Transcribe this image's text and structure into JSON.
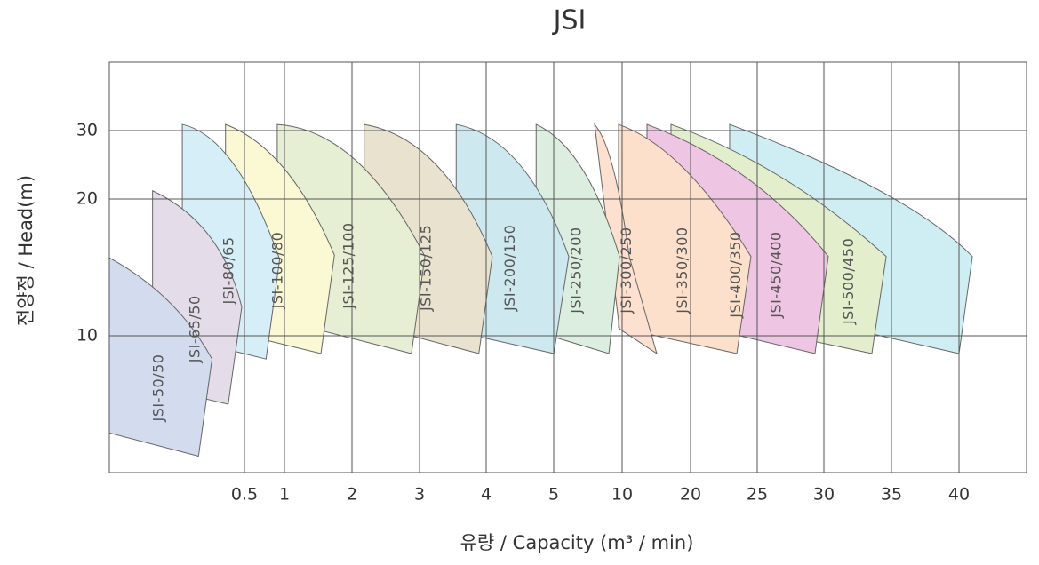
{
  "chart_data": {
    "type": "region",
    "title": "JSI",
    "xlabel": "유량 / Capacity (m³ / min)",
    "ylabel": "전양정 / Head(m)",
    "xlim": [
      0,
      45
    ],
    "xticks": [
      0.5,
      1,
      2,
      3,
      4,
      5,
      10,
      20,
      25,
      30,
      35,
      40
    ],
    "ylim": [
      0,
      40
    ],
    "yticks": [
      10,
      20,
      30
    ],
    "grid": true,
    "series": [
      {
        "name": "JSI-50/50",
        "color": "#d3dcef",
        "x": [
          0,
          0.22,
          0.38,
          0.33,
          0
        ],
        "y": [
          15.7,
          12.5,
          8.3,
          1.2,
          2.9
        ]
      },
      {
        "name": "JSI-65/50",
        "color": "#e5dcea",
        "x": [
          0.16,
          0.37,
          0.49,
          0.44,
          0.16
        ],
        "y": [
          21.2,
          17.3,
          12.1,
          5.0,
          6.3
        ]
      },
      {
        "name": "JSI-80/65",
        "color": "#d6eef7",
        "x": [
          0.27,
          0.46,
          0.94,
          0.77,
          0.27
        ],
        "y": [
          30.9,
          25.1,
          15.6,
          8.3,
          9.8
        ]
      },
      {
        "name": "JSI-100/80",
        "color": "#fbf9d3",
        "x": [
          0.43,
          1,
          1.74,
          1.54,
          0.43
        ],
        "y": [
          30.9,
          24.4,
          15.9,
          8.7,
          10.4
        ]
      },
      {
        "name": "JSI-125/100",
        "color": "#e6eed3",
        "x": [
          0.91,
          2.05,
          3.08,
          2.88,
          0.91
        ],
        "y": [
          30.9,
          25.7,
          15.8,
          8.7,
          11.2
        ]
      },
      {
        "name": "JSI-150/125",
        "color": "#e9e2cf",
        "x": [
          2.18,
          3.24,
          4.09,
          3.89,
          2.18
        ],
        "y": [
          30.9,
          25.1,
          15.8,
          8.7,
          10.9
        ]
      },
      {
        "name": "JSI-200/150",
        "color": "#cde8ee",
        "x": [
          3.55,
          4.49,
          6.1,
          5.01,
          3.55
        ],
        "y": [
          30.9,
          25.1,
          15.8,
          8.7,
          10.3
        ]
      },
      {
        "name": "JSI-250/200",
        "color": "#dbeee0",
        "x": [
          4.74,
          7.08,
          9.81,
          9.03,
          4.74
        ],
        "y": [
          30.9,
          24.4,
          15.8,
          8.7,
          10.3
        ]
      },
      {
        "name": "JSI-300/250",
        "color": "#fde0cf",
        "x": [
          7.99,
          9.35,
          11.04,
          15.06,
          9.81
        ],
        "y": [
          30.9,
          24.4,
          15.8,
          8.7,
          10.5
        ]
      },
      {
        "name": "JSI-350/300",
        "color": "#fde0cb",
        "x": [
          9.74,
          19.09,
          24.53,
          23.47,
          9.74
        ],
        "y": [
          30.9,
          24.4,
          15.8,
          8.7,
          10.6
        ]
      },
      {
        "name": "JSI-400/350",
        "color": "#eec5e2",
        "x": [
          13.64,
          24.2,
          30.33,
          29.33,
          13.64
        ],
        "y": [
          30.9,
          23.1,
          15.8,
          8.7,
          11.6
        ]
      },
      {
        "name": "JSI-450/400",
        "color": "#e3efcc",
        "x": [
          17.14,
          26.87,
          34.61,
          33.55,
          17.14
        ],
        "y": [
          30.9,
          23.1,
          15.8,
          8.7,
          11.8
        ]
      },
      {
        "name": "JSI-500/450",
        "color": "#cfeef3",
        "x": [
          22.93,
          34.15,
          40.99,
          40,
          22.93
        ],
        "y": [
          30.9,
          21.2,
          15.8,
          8.7,
          12.5
        ]
      }
    ]
  }
}
